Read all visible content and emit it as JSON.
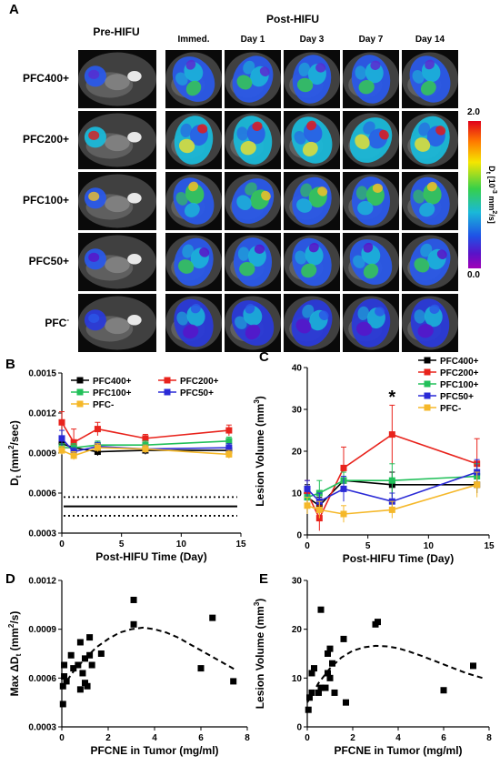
{
  "panel_a": {
    "letter": "A",
    "pre_title": "Pre-HIFU",
    "post_title": "Post-HIFU",
    "columns": [
      "Immed.",
      "Day 1",
      "Day 3",
      "Day 7",
      "Day 14"
    ],
    "rows": [
      "PFC400+",
      "PFC200+",
      "PFC100+",
      "PFC50+",
      "PFC"
    ],
    "row_superscript": "-",
    "colorbar": {
      "max": "2.0",
      "min": "0.0",
      "label": "D",
      "label_sub": "t",
      "label_unit": "[10",
      "label_exp": "-3",
      "label_unit2": " mm",
      "label_exp2": "2",
      "label_unit3": "/s]"
    }
  },
  "chart_data": [
    {
      "panel": "B",
      "type": "line",
      "ylabel": "D",
      "ylabel_sub": "t",
      "ylabel_rest": " (mm",
      "ylabel_exp": "2",
      "ylabel_end": "/sec)",
      "xlabel": "Post-HIFU Time (Day)",
      "xlim": [
        0,
        15
      ],
      "ylim": [
        0.0003,
        0.0015
      ],
      "xticks": [
        "0",
        "5",
        "10",
        "15"
      ],
      "yticks": [
        "0.0003",
        "0.0006",
        "0.0009",
        "0.0012",
        "0.0015"
      ],
      "x": [
        0,
        1,
        3,
        7,
        14
      ],
      "series": [
        {
          "name": "PFC400+",
          "color": "#000000",
          "values": [
            0.00097,
            0.00094,
            0.00091,
            0.00092,
            0.00092
          ],
          "err": [
            3e-05,
            3e-05,
            3e-05,
            3e-05,
            3e-05
          ]
        },
        {
          "name": "PFC200+",
          "color": "#e8231c",
          "values": [
            0.00113,
            0.00098,
            0.00108,
            0.00101,
            0.00107
          ],
          "err": [
            8e-05,
            0.0001,
            5e-05,
            3e-05,
            4e-05
          ]
        },
        {
          "name": "PFC100+",
          "color": "#22c05a",
          "values": [
            0.00094,
            0.00094,
            0.00096,
            0.00096,
            0.00099
          ],
          "err": [
            3e-05,
            3e-05,
            3e-05,
            3e-05,
            3e-05
          ]
        },
        {
          "name": "PFC50+",
          "color": "#2a2ad6",
          "values": [
            0.00101,
            0.00091,
            0.00095,
            0.00093,
            0.00094
          ],
          "err": [
            6e-05,
            3e-05,
            3e-05,
            3e-05,
            3e-05
          ]
        },
        {
          "name": "PFC-",
          "color": "#f5b82a",
          "values": [
            0.00092,
            0.00088,
            0.00094,
            0.00093,
            0.00089
          ],
          "err": [
            3e-05,
            3e-05,
            3e-05,
            3e-05,
            3e-05
          ]
        }
      ],
      "reference_lines": [
        0.00057,
        0.0005,
        0.00043
      ]
    },
    {
      "panel": "C",
      "type": "line",
      "ylabel": "Lesion Volume (mm",
      "ylabel_exp": "3",
      "ylabel_end": ")",
      "xlabel": "Post-HIFU Time (Day)",
      "xlim": [
        0,
        15
      ],
      "ylim": [
        0,
        40
      ],
      "xticks": [
        "0",
        "5",
        "10",
        "15"
      ],
      "yticks": [
        "0",
        "10",
        "20",
        "30",
        "40"
      ],
      "annotation": "*",
      "x": [
        0,
        1,
        3,
        7,
        14
      ],
      "series": [
        {
          "name": "PFC400+",
          "color": "#000000",
          "values": [
            9,
            7,
            13,
            12,
            12
          ],
          "err": [
            3,
            2,
            3,
            3,
            2
          ]
        },
        {
          "name": "PFC200+",
          "color": "#e8231c",
          "values": [
            10,
            4,
            16,
            24,
            17
          ],
          "err": [
            3,
            3,
            5,
            7,
            6
          ]
        },
        {
          "name": "PFC100+",
          "color": "#22c05a",
          "values": [
            9,
            10,
            13,
            13,
            14
          ],
          "err": [
            2,
            3,
            2,
            4,
            3
          ]
        },
        {
          "name": "PFC50+",
          "color": "#2a2ad6",
          "values": [
            11,
            8,
            11,
            8,
            15
          ],
          "err": [
            2,
            2,
            3,
            2,
            3
          ]
        },
        {
          "name": "PFC-",
          "color": "#f5b82a",
          "values": [
            7,
            6,
            5,
            6,
            12
          ],
          "err": [
            2,
            2,
            2,
            2,
            3
          ]
        }
      ]
    },
    {
      "panel": "D",
      "type": "scatter",
      "ylabel": "Max ΔD",
      "ylabel_sub": "t",
      "ylabel_rest": " (mm",
      "ylabel_exp": "2",
      "ylabel_end": "/s)",
      "xlabel": "PFCNE in Tumor (mg/ml)",
      "xlim": [
        0,
        8
      ],
      "ylim": [
        0.0003,
        0.0012
      ],
      "xticks": [
        "0",
        "2",
        "4",
        "6",
        "8"
      ],
      "yticks": [
        "0.0003",
        "0.0006",
        "0.0009",
        "0.0012"
      ],
      "points": [
        [
          0.05,
          0.00044
        ],
        [
          0.05,
          0.00055
        ],
        [
          0.1,
          0.00061
        ],
        [
          0.1,
          0.00068
        ],
        [
          0.2,
          0.00058
        ],
        [
          0.4,
          0.00074
        ],
        [
          0.5,
          0.00066
        ],
        [
          0.7,
          0.00068
        ],
        [
          0.8,
          0.00082
        ],
        [
          0.8,
          0.00053
        ],
        [
          0.9,
          0.00063
        ],
        [
          1.0,
          0.00072
        ],
        [
          1.0,
          0.00057
        ],
        [
          1.1,
          0.00055
        ],
        [
          1.2,
          0.00085
        ],
        [
          1.2,
          0.00074
        ],
        [
          1.3,
          0.00068
        ],
        [
          1.7,
          0.00075
        ],
        [
          3.1,
          0.00108
        ],
        [
          3.1,
          0.00093
        ],
        [
          6.0,
          0.00066
        ],
        [
          6.5,
          0.00097
        ],
        [
          7.4,
          0.00058
        ]
      ],
      "fit": [
        [
          0,
          0.00054
        ],
        [
          0.5,
          0.00064
        ],
        [
          1,
          0.00072
        ],
        [
          1.5,
          0.00079
        ],
        [
          2,
          0.00084
        ],
        [
          2.5,
          0.00088
        ],
        [
          3,
          0.0009
        ],
        [
          3.5,
          0.00091
        ],
        [
          4,
          0.0009
        ],
        [
          4.5,
          0.00088
        ],
        [
          5,
          0.00085
        ],
        [
          5.5,
          0.00081
        ],
        [
          6,
          0.00077
        ],
        [
          6.5,
          0.00073
        ],
        [
          7,
          0.00069
        ],
        [
          7.5,
          0.00065
        ]
      ]
    },
    {
      "panel": "E",
      "type": "scatter",
      "ylabel": "Lesion Volume (mm",
      "ylabel_exp": "3",
      "ylabel_end": ")",
      "xlabel": "PFCNE in Tumor (mg/ml)",
      "xlim": [
        0,
        8
      ],
      "ylim": [
        0,
        30
      ],
      "xticks": [
        "0",
        "2",
        "4",
        "6",
        "8"
      ],
      "yticks": [
        "0",
        "10",
        "20",
        "30"
      ],
      "points": [
        [
          0.05,
          3.5
        ],
        [
          0.1,
          6
        ],
        [
          0.2,
          7
        ],
        [
          0.2,
          11
        ],
        [
          0.3,
          12
        ],
        [
          0.5,
          7
        ],
        [
          0.6,
          8
        ],
        [
          0.6,
          24
        ],
        [
          0.8,
          8
        ],
        [
          0.9,
          11
        ],
        [
          0.9,
          15
        ],
        [
          1.0,
          16
        ],
        [
          1.0,
          10
        ],
        [
          1.1,
          13
        ],
        [
          1.2,
          7
        ],
        [
          1.6,
          18
        ],
        [
          1.7,
          5
        ],
        [
          3.0,
          21
        ],
        [
          3.1,
          21.5
        ],
        [
          6.0,
          7.5
        ],
        [
          7.3,
          12.5
        ]
      ],
      "fit": [
        [
          0,
          5
        ],
        [
          0.5,
          9
        ],
        [
          1,
          12
        ],
        [
          1.5,
          14.2
        ],
        [
          2,
          15.6
        ],
        [
          2.5,
          16.3
        ],
        [
          3,
          16.6
        ],
        [
          3.5,
          16.5
        ],
        [
          4,
          16.1
        ],
        [
          4.5,
          15.4
        ],
        [
          5,
          14.6
        ],
        [
          5.5,
          13.7
        ],
        [
          6,
          12.8
        ],
        [
          6.5,
          11.9
        ],
        [
          7,
          11
        ],
        [
          7.5,
          10.3
        ],
        [
          7.8,
          9.9
        ]
      ]
    }
  ]
}
